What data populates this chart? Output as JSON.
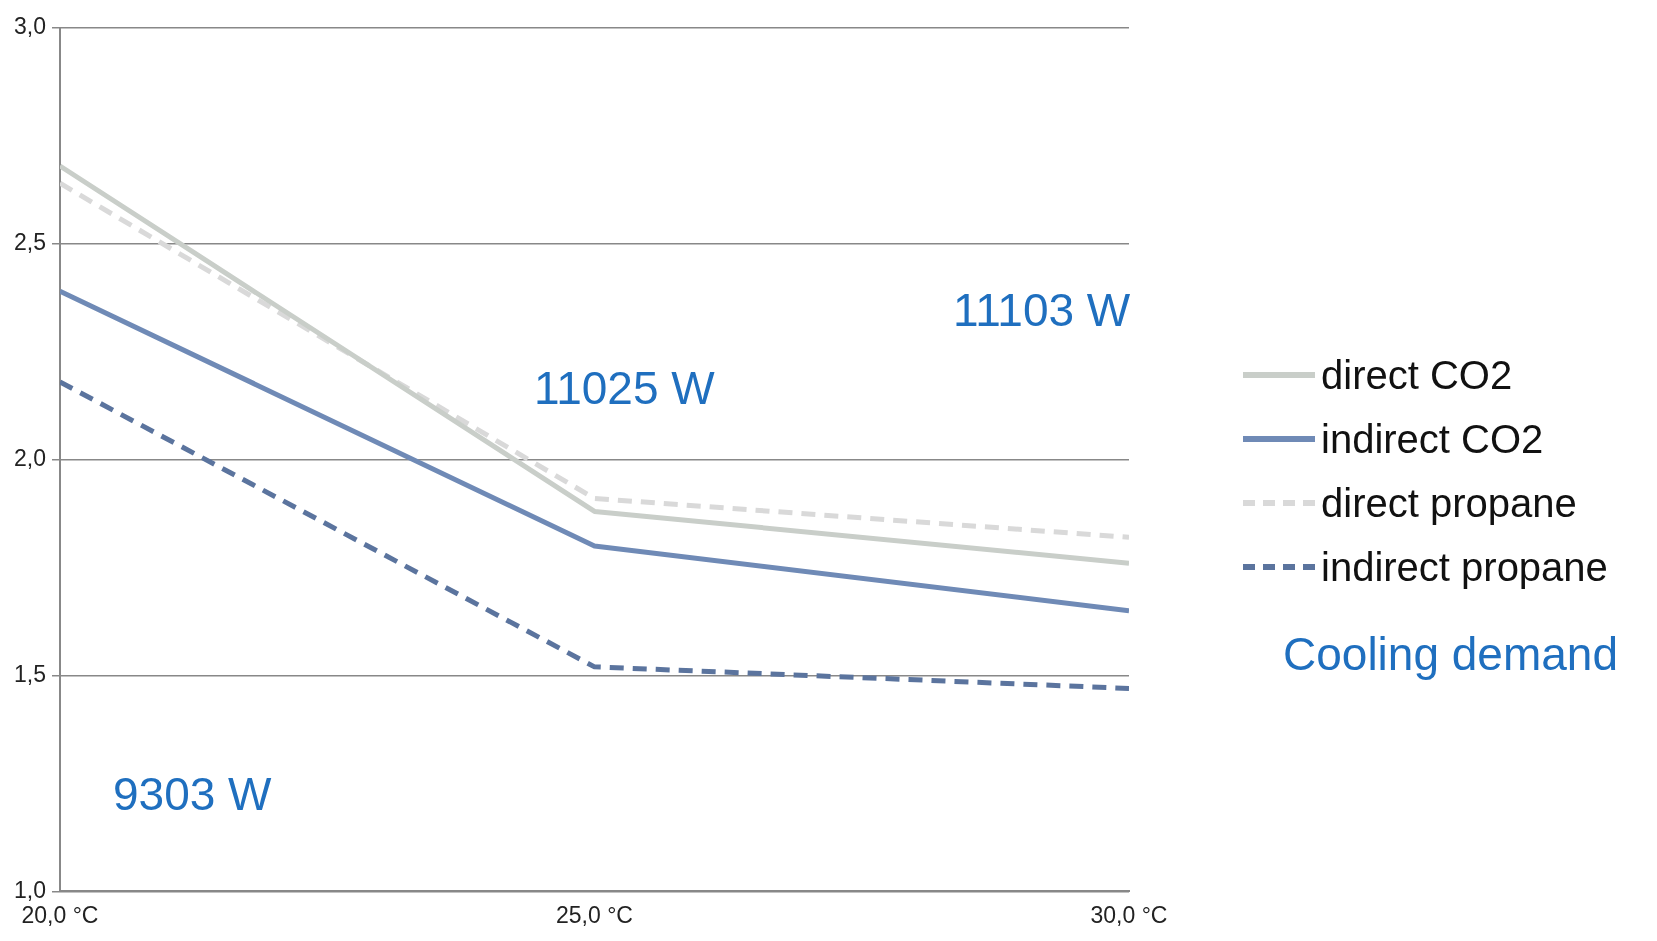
{
  "chart_data": {
    "type": "line",
    "x": [
      20,
      25,
      30
    ],
    "xlim": [
      20,
      30
    ],
    "xticks": [
      {
        "value": 20,
        "label": "20,0 °C"
      },
      {
        "value": 25,
        "label": "25,0 °C"
      },
      {
        "value": 30,
        "label": "30,0 °C"
      }
    ],
    "ylim": [
      1,
      3
    ],
    "yticks": [
      {
        "value": 1,
        "label": "1,0"
      },
      {
        "value": 1.5,
        "label": "1,5"
      },
      {
        "value": 2,
        "label": "2,0"
      },
      {
        "value": 2.5,
        "label": "2,5"
      },
      {
        "value": 3,
        "label": "3,0"
      }
    ],
    "grid": "y",
    "legend": "right",
    "marker": "none",
    "series": [
      {
        "name": "direct CO2",
        "color": "#c9cec9",
        "line_style": "solid",
        "values": [
          2.68,
          1.88,
          1.76
        ]
      },
      {
        "name": "indirect CO2",
        "color": "#6f8ab6",
        "line_style": "solid",
        "values": [
          2.39,
          1.8,
          1.65
        ]
      },
      {
        "name": "direct propane",
        "color": "#d9d9d9",
        "line_style": "dashed",
        "values": [
          2.64,
          1.91,
          1.82
        ]
      },
      {
        "name": "indirect propane",
        "color": "#5b749e",
        "line_style": "dashed",
        "values": [
          2.18,
          1.52,
          1.47
        ]
      }
    ],
    "annotations": [
      "9303 W",
      "11025 W",
      "11103 W",
      "Cooling demand"
    ]
  }
}
